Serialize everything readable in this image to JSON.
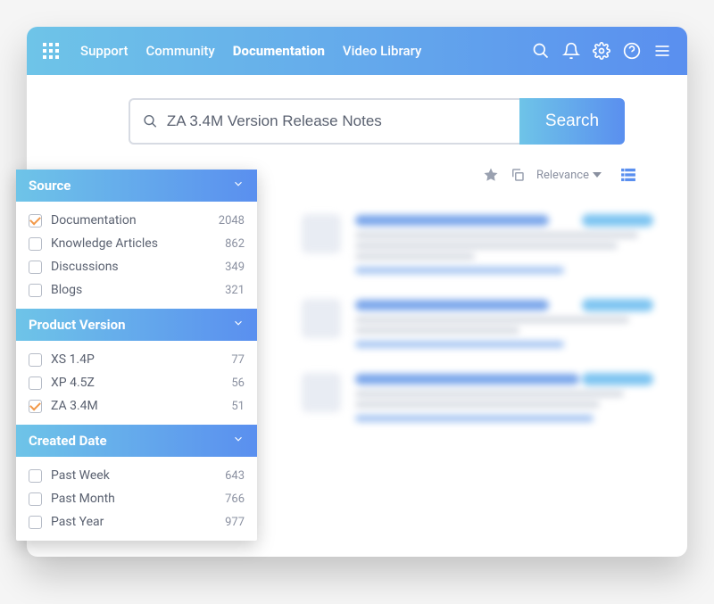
{
  "colors": {
    "gradient_start": "#6ec4e8",
    "gradient_end": "#5a8fef",
    "text_muted": "#5a6170",
    "accent_check": "#f2994a",
    "blue": "#5a8fef"
  },
  "nav": {
    "items": [
      {
        "label": "Support",
        "active": false
      },
      {
        "label": "Community",
        "active": false
      },
      {
        "label": "Documentation",
        "active": true
      },
      {
        "label": "Video Library",
        "active": false
      }
    ]
  },
  "search": {
    "value": "ZA 3.4M Version Release Notes",
    "button": "Search"
  },
  "facets": [
    {
      "title": "Source",
      "items": [
        {
          "label": "Documentation",
          "count": "2048",
          "checked": true
        },
        {
          "label": "Knowledge Articles",
          "count": "862",
          "checked": false
        },
        {
          "label": "Discussions",
          "count": "349",
          "checked": false
        },
        {
          "label": "Blogs",
          "count": "321",
          "checked": false
        }
      ]
    },
    {
      "title": "Product Version",
      "items": [
        {
          "label": "XS 1.4P",
          "count": "77",
          "checked": false
        },
        {
          "label": "XP 4.5Z",
          "count": "56",
          "checked": false
        },
        {
          "label": "ZA 3.4M",
          "count": "51",
          "checked": true
        }
      ]
    },
    {
      "title": "Created Date",
      "items": [
        {
          "label": "Past Week",
          "count": "643",
          "checked": false
        },
        {
          "label": "Past Month",
          "count": "766",
          "checked": false
        },
        {
          "label": "Past Year",
          "count": "977",
          "checked": false
        }
      ]
    }
  ],
  "sort_label": "Relevance"
}
